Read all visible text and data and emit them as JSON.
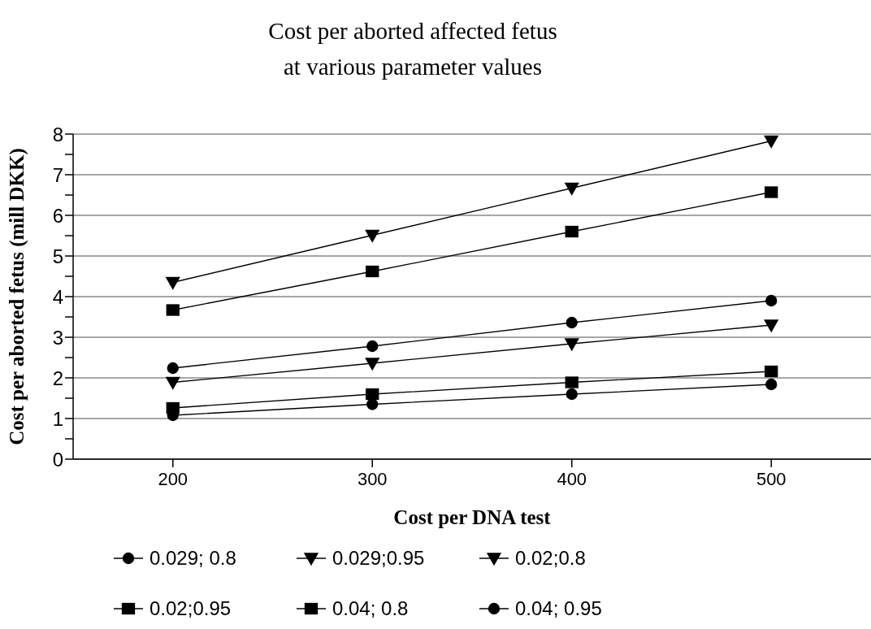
{
  "chart_data": {
    "type": "line",
    "title": "Cost per aborted affected fetus\nat various parameter values",
    "xlabel": "Cost per DNA test",
    "ylabel": "Cost per aborted fetus (mill DKK)",
    "x": [
      200,
      300,
      400,
      500
    ],
    "series": [
      {
        "name": "0.029; 0.8",
        "color": "#000000",
        "marker": "circle",
        "values": [
          2.24,
          2.78,
          3.36,
          3.9
        ]
      },
      {
        "name": "0.029;0.95",
        "color": "#000000",
        "marker": "triangle",
        "values": [
          1.89,
          2.36,
          2.84,
          3.3
        ]
      },
      {
        "name": "0.02;0.8",
        "color": "#000000",
        "marker": "triangle",
        "values": [
          4.35,
          5.51,
          6.67,
          7.83
        ]
      },
      {
        "name": "0.02;0.95",
        "color": "#000000",
        "marker": "square",
        "values": [
          3.67,
          4.62,
          5.6,
          6.57
        ]
      },
      {
        "name": "0.04; 0.8",
        "color": "#000000",
        "marker": "square",
        "values": [
          1.26,
          1.6,
          1.89,
          2.16
        ]
      },
      {
        "name": "0.04; 0.95",
        "color": "#000000",
        "marker": "circle",
        "values": [
          1.08,
          1.35,
          1.6,
          1.84
        ]
      }
    ],
    "xlim": [
      150,
      550
    ],
    "xticks": [
      200,
      300,
      400,
      500
    ],
    "ylim": [
      0,
      8
    ],
    "yticks": [
      0,
      {
        "value": 0.5,
        "label": null
      },
      1,
      {
        "value": 1.5,
        "label": null
      },
      2,
      {
        "value": 2.5,
        "label": null
      },
      3,
      {
        "value": 3.5,
        "label": null
      },
      4,
      {
        "value": 4.5,
        "label": null
      },
      5,
      {
        "value": 5.5,
        "label": null
      },
      6,
      {
        "value": 6.5,
        "label": null
      },
      7,
      {
        "value": 7.5,
        "label": null
      },
      8
    ],
    "grid": "y",
    "legend": "bottom",
    "line_style": "solid"
  }
}
